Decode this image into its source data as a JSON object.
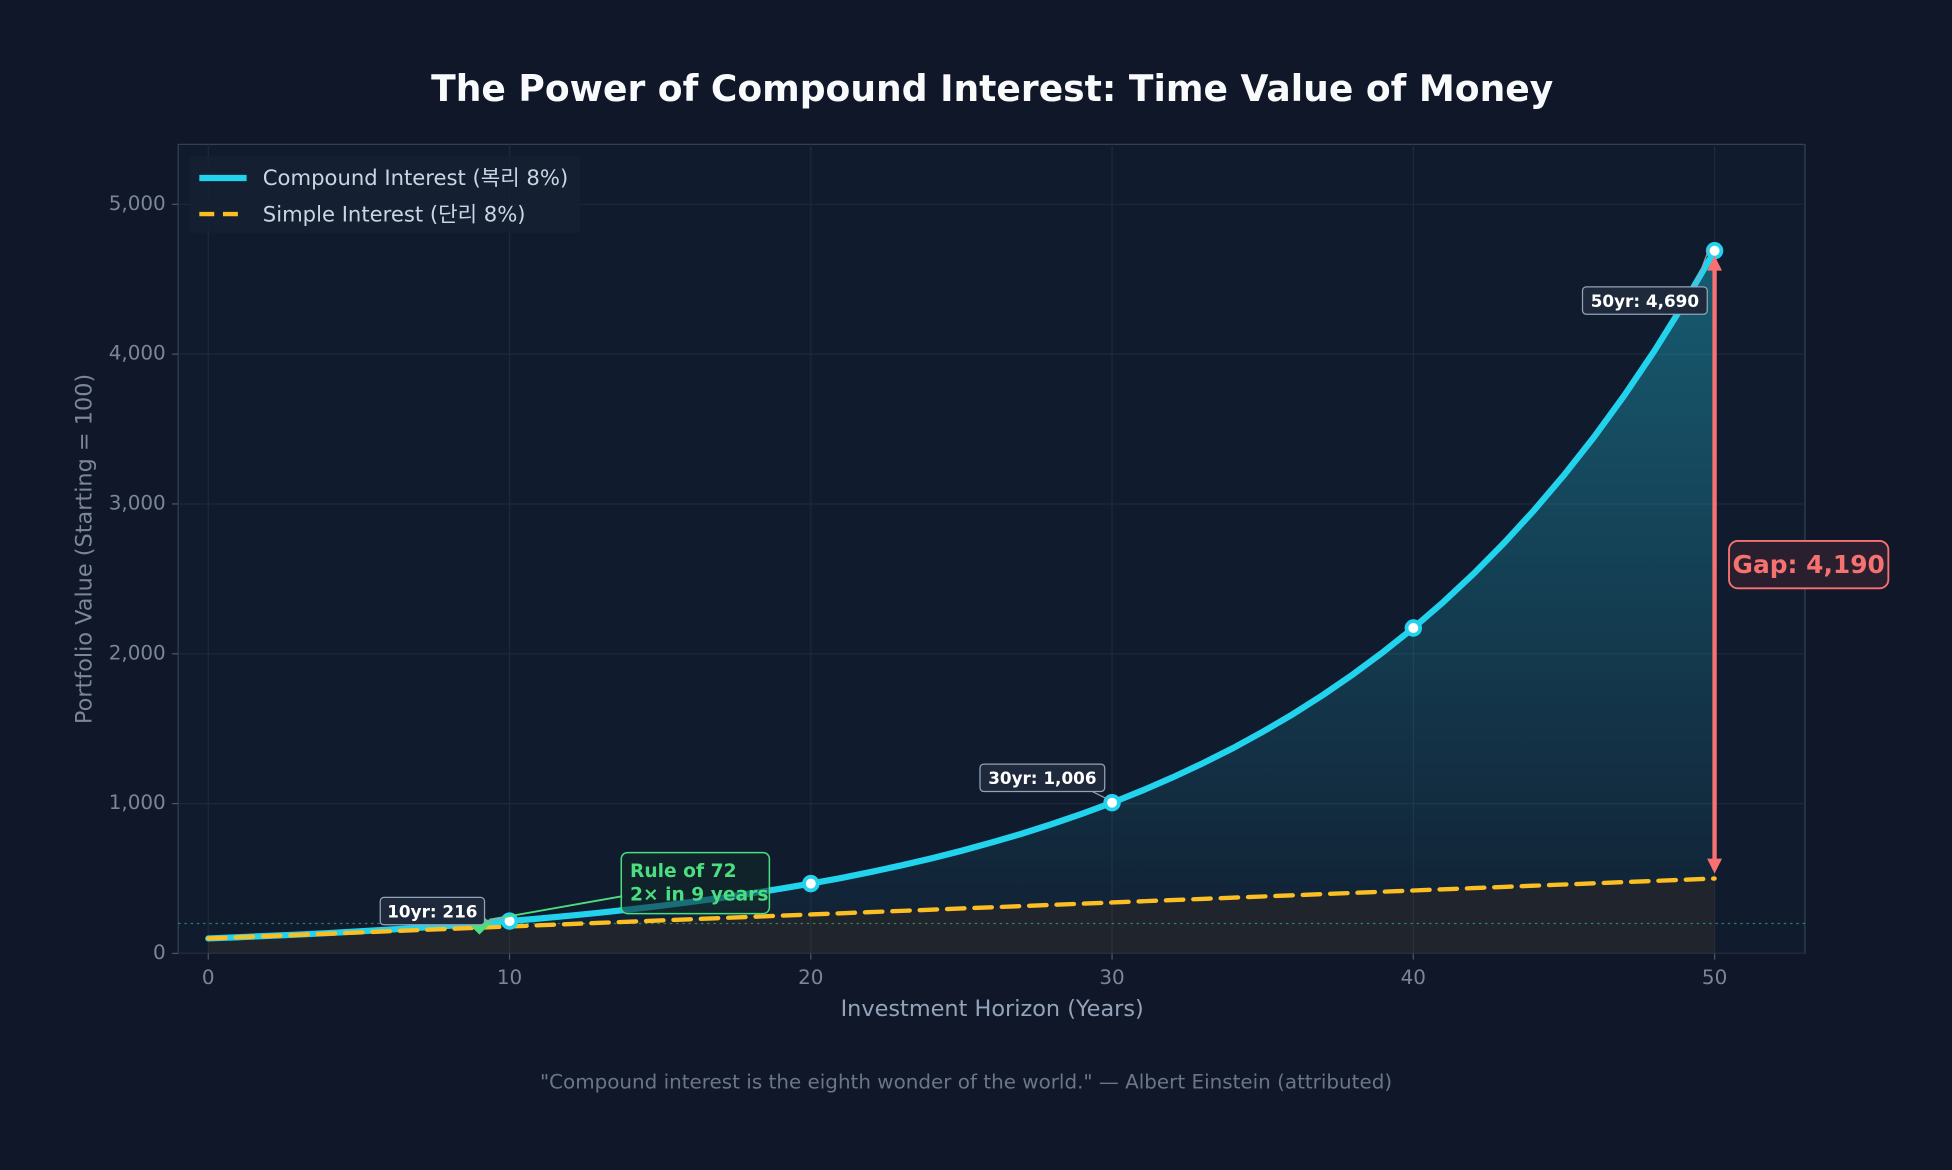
{
  "chart_data": {
    "type": "line",
    "title": "The Power of Compound Interest: Time Value of Money",
    "xlabel": "Investment Horizon (Years)",
    "ylabel": "Portfolio Value (Starting = 100)",
    "footnote": "\"Compound interest is the eighth wonder of the world.\" — Albert Einstein (attributed)",
    "x": [
      0,
      1,
      2,
      3,
      4,
      5,
      6,
      7,
      8,
      9,
      10,
      11,
      12,
      13,
      14,
      15,
      16,
      17,
      18,
      19,
      20,
      21,
      22,
      23,
      24,
      25,
      26,
      27,
      28,
      29,
      30,
      31,
      32,
      33,
      34,
      35,
      36,
      37,
      38,
      39,
      40,
      41,
      42,
      43,
      44,
      45,
      46,
      47,
      48,
      49,
      50
    ],
    "series": [
      {
        "name": "Compound Interest (복리 8%)",
        "color": "#22d3ee",
        "dashed": false,
        "values": [
          100,
          108,
          117,
          126,
          136,
          147,
          159,
          171,
          185,
          200,
          216,
          233,
          252,
          272,
          294,
          317,
          343,
          370,
          400,
          432,
          466,
          503,
          544,
          587,
          634,
          685,
          740,
          799,
          863,
          932,
          1006,
          1087,
          1174,
          1268,
          1369,
          1479,
          1597,
          1725,
          1863,
          2012,
          2172,
          2346,
          2534,
          2737,
          2956,
          3192,
          3447,
          3723,
          4021,
          4343,
          4690
        ],
        "markers": [
          10,
          20,
          30,
          40,
          50
        ]
      },
      {
        "name": "Simple Interest (단리 8%)",
        "color": "#fbbf24",
        "dashed": true,
        "values": [
          100,
          108,
          116,
          124,
          132,
          140,
          148,
          156,
          164,
          172,
          180,
          188,
          196,
          204,
          212,
          220,
          228,
          236,
          244,
          252,
          260,
          268,
          276,
          284,
          292,
          300,
          308,
          316,
          324,
          332,
          340,
          348,
          356,
          364,
          372,
          380,
          388,
          396,
          404,
          412,
          420,
          428,
          436,
          444,
          452,
          460,
          468,
          476,
          484,
          492,
          500
        ]
      }
    ],
    "xlim": [
      -1,
      53
    ],
    "ylim": [
      0,
      5400
    ],
    "xticks": [
      0,
      10,
      20,
      30,
      40,
      50
    ],
    "yticks": [
      0,
      {
        "value": 1000,
        "label": "1,000"
      },
      {
        "value": 2000,
        "label": "2,000"
      },
      {
        "value": 3000,
        "label": "3,000"
      },
      {
        "value": 4000,
        "label": "4,000"
      },
      {
        "value": 5000,
        "label": "5,000"
      }
    ],
    "grid": true,
    "legend": "upper left",
    "annotations": [
      {
        "text": "10yr: 216",
        "x": 10,
        "y": 216
      },
      {
        "text": "30yr: 1,006",
        "x": 30,
        "y": 1006
      },
      {
        "text": "50yr: 4,690",
        "x": 50,
        "y": 4690
      }
    ],
    "doubling": {
      "title": "Rule of 72",
      "text": "2× in 9 years",
      "x": 9,
      "y": 200,
      "color": "#4ade80"
    },
    "gap": {
      "value": 4190,
      "label": "Gap: 4,190",
      "x": 50,
      "from": 500,
      "to": 4690,
      "color": "#f87171"
    }
  }
}
